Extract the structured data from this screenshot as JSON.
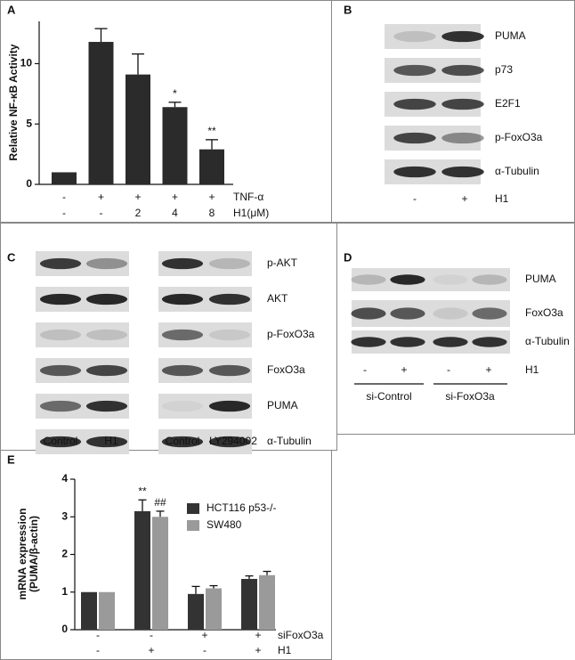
{
  "chart_data": [
    {
      "type": "bar",
      "panel_label": "A",
      "y_label": "Relative NF-κB Activity",
      "categories": [
        null,
        null,
        null,
        null,
        null
      ],
      "values": [
        1,
        11.8,
        9.1,
        6.4,
        2.9
      ],
      "errors": [
        0,
        1.1,
        1.7,
        0.4,
        0.8
      ],
      "annotations": [
        null,
        null,
        null,
        "*",
        "**"
      ],
      "color": "#2b2b2b",
      "ylim": [
        0,
        13.5
      ],
      "yticks": [
        0,
        5,
        10
      ],
      "treatments": [
        {
          "name": "TNF-α",
          "labels": [
            "-",
            "+",
            "+",
            "+",
            "+"
          ]
        },
        {
          "name": "H1(μM)",
          "labels": [
            "-",
            "-",
            "2",
            "4",
            "8"
          ]
        }
      ]
    },
    {
      "type": "grouped_bar",
      "panel_label": "E",
      "y_label": [
        "mRNA expression",
        "(PUMA/β-actin)"
      ],
      "categories": [
        null,
        null,
        null,
        null
      ],
      "series": [
        {
          "name": "HCT116 p53-/-",
          "color": "#333333",
          "values": [
            1,
            3.15,
            0.95,
            1.35
          ],
          "errors": [
            0,
            0.3,
            0.2,
            0.08
          ],
          "annotations": [
            null,
            "**",
            null,
            null
          ]
        },
        {
          "name": "SW480",
          "color": "#9a9a9a",
          "values": [
            1,
            3.0,
            1.1,
            1.45
          ],
          "errors": [
            0,
            0.15,
            0.07,
            0.1
          ],
          "annotations": [
            null,
            "##",
            null,
            null
          ]
        }
      ],
      "ylim": [
        0,
        4
      ],
      "yticks": [
        0,
        1,
        2,
        3,
        4
      ],
      "treatments": [
        {
          "name": "siFoxO3a",
          "labels": [
            "-",
            "-",
            "+",
            "+"
          ]
        },
        {
          "name": "H1",
          "labels": [
            "-",
            "+",
            "-",
            "+"
          ]
        }
      ]
    }
  ],
  "blots": [
    {
      "panel_label": "B",
      "row_labels": [
        "PUMA",
        "p73",
        "E2F1",
        "p-FoxO3a",
        "α-Tubulin"
      ],
      "lane_labels": [
        "-",
        "+"
      ],
      "condition_label": "H1"
    },
    {
      "panel_label": "C",
      "row_labels": [
        "p-AKT",
        "AKT",
        "p-FoxO3a",
        "FoxO3a",
        "PUMA",
        "α-Tubulin"
      ],
      "lane_labels": [
        "Control",
        "H1",
        "Control",
        "LY294002"
      ]
    },
    {
      "panel_label": "D",
      "row_labels": [
        "PUMA",
        "FoxO3a",
        "α-Tubulin"
      ],
      "lane_labels": [
        "-",
        "+",
        "-",
        "+"
      ],
      "condition_label": "H1",
      "group_labels": [
        "si-Control",
        "si-FoxO3a"
      ]
    }
  ]
}
